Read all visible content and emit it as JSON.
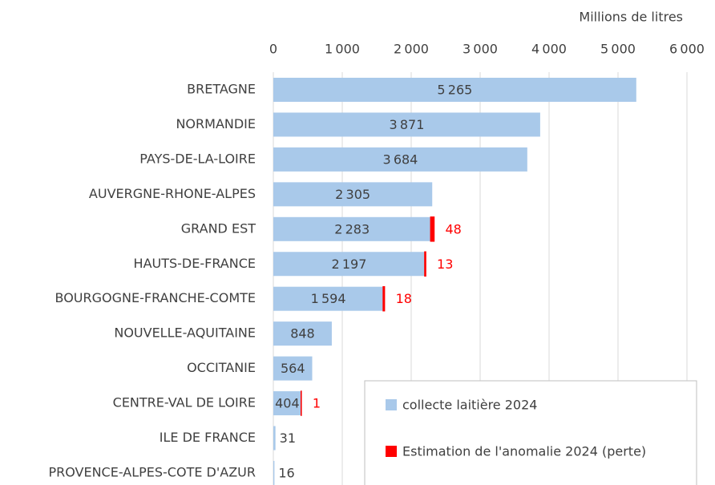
{
  "chart_data": {
    "type": "bar",
    "orientation": "horizontal",
    "stacked": true,
    "x_axis_label": "Millions de litres",
    "categories": [
      "BRETAGNE",
      "NORMANDIE",
      "PAYS-DE-LA-LOIRE",
      "AUVERGNE-RHONE-ALPES",
      "GRAND EST",
      "HAUTS-DE-FRANCE",
      "BOURGOGNE-FRANCHE-COMTE",
      "NOUVELLE-AQUITAINE",
      "OCCITANIE",
      "CENTRE-VAL DE LOIRE",
      "ILE DE FRANCE",
      "PROVENCE-ALPES-COTE D'AZUR"
    ],
    "series": [
      {
        "name": "collecte laitière 2024",
        "color": "#a9c9ea",
        "values": [
          5265,
          3871,
          3684,
          2305,
          2283,
          2197,
          1594,
          848,
          564,
          404,
          31,
          16
        ],
        "value_labels": [
          "5 265",
          "3 871",
          "3 684",
          "2 305",
          "2 283",
          "2 197",
          "1 594",
          "848",
          "564",
          "404",
          "31",
          "16"
        ]
      },
      {
        "name": "Estimation de l'anomalie 2024 (perte)",
        "color": "#ff0000",
        "values": [
          null,
          null,
          null,
          null,
          48,
          13,
          18,
          null,
          null,
          1,
          null,
          null
        ]
      }
    ],
    "xlim": [
      0,
      6000
    ],
    "xticks": [
      0,
      {
        "value": 1000,
        "label": "1 000"
      },
      {
        "value": 2000,
        "label": "2 000"
      },
      {
        "value": 3000,
        "label": "3 000"
      },
      {
        "value": 4000,
        "label": "4 000"
      },
      {
        "value": 5000,
        "label": "5 000"
      },
      {
        "value": 6000,
        "label": "6 000"
      }
    ],
    "grid": true,
    "legend": "bottom-right"
  }
}
